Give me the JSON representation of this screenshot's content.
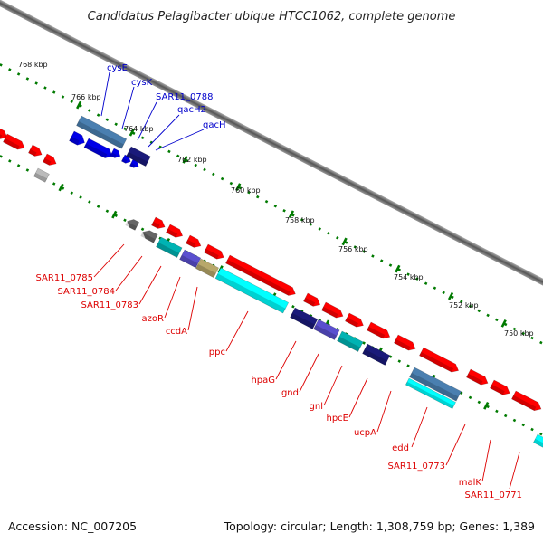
{
  "title": "Candidatus Pelagibacter ubique HTCC1062, complete genome",
  "footer": {
    "accession": "Accession: NC_007205",
    "summary": "Topology: circular; Length: 1,308,759 bp; Genes: 1,389"
  },
  "scale_labels": [
    "768 kbp",
    "766 kbp",
    "764 kbp",
    "762 kbp",
    "760 kbp",
    "758 kbp",
    "756 kbp",
    "754 kbp",
    "752 kbp",
    "750 kbp"
  ],
  "genes_top": [
    "cysE",
    "cysK",
    "SAR11_0788",
    "qacH2",
    "qacH"
  ],
  "genes_bottom": [
    "SAR11_0785",
    "SAR11_0784",
    "SAR11_0783",
    "azoR",
    "ccdA",
    "ppc",
    "hpaG",
    "gnd",
    "gnl",
    "hpcE",
    "ucpA",
    "edd",
    "SAR11_0773",
    "malK",
    "SAR11_0771"
  ],
  "colors": {
    "cds": "#ff0000",
    "blue": "#0000e8",
    "steel": "#4a7fb0",
    "navy": "#1a1a7a",
    "purple": "#5a4fcf",
    "cyan": "#00ffff",
    "teal": "#00b3b3",
    "olive": "#b8a86a",
    "gray": "#666666",
    "tick": "#007a00",
    "label_red": "#dd0000",
    "label_blue": "#0000cc"
  }
}
